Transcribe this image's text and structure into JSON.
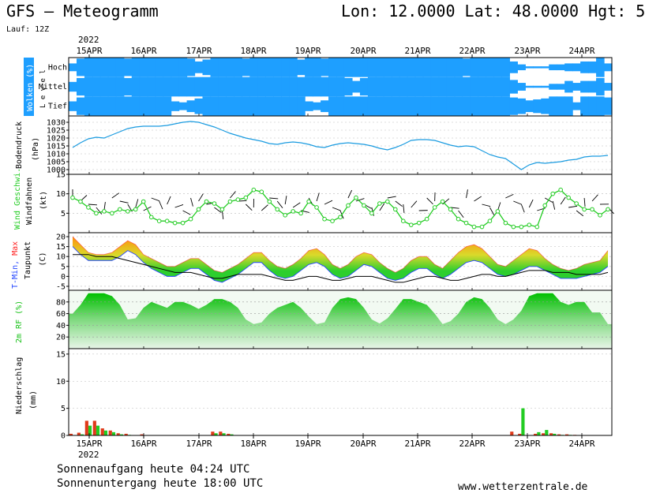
{
  "header": {
    "title": "GFS – Meteogramm",
    "location": "Lon: 12.0000  Lat: 48.0000  Hgt: 5",
    "run": "Lauf: 12Z"
  },
  "footer": {
    "sunrise": "Sonnenaufgang heute 04:24 UTC",
    "sunset": "Sonnenuntergang heute 18:00 UTC",
    "site": "www.wetterzentrale.de"
  },
  "chart_data": {
    "type": "meteogram",
    "year": "2022",
    "dates": [
      "15APR",
      "16APR",
      "17APR",
      "18APR",
      "19APR",
      "20APR",
      "21APR",
      "22APR",
      "23APR",
      "24APR"
    ],
    "colors": {
      "cloud": "#1e9fff",
      "pressure": "#1a9be0",
      "wind_speed": "#22cc22",
      "wind_barb": "#000000",
      "tmin": "#2244ff",
      "tmax": "#ff2222",
      "dewpoint": "#000000",
      "rh": "#16c016",
      "precip_rain": "#e03a1a",
      "precip_conv": "#22cc22"
    },
    "panels": [
      {
        "id": "clouds",
        "type": "heatmap",
        "ylabel": "Wolken (%)",
        "ylabel2": "L e v e l",
        "levels": [
          "Hoch",
          "Mittel",
          "Tief"
        ],
        "cover": {
          "Hoch": [
            40,
            90,
            100,
            100,
            100,
            100,
            100,
            90,
            100,
            100,
            100,
            100,
            100,
            100,
            100,
            90,
            60,
            80,
            100,
            100,
            100,
            100,
            90,
            100,
            100,
            100,
            100,
            100,
            100,
            80,
            100,
            100,
            90,
            100,
            100,
            100,
            100,
            100,
            100,
            100,
            100,
            100,
            100,
            100,
            100,
            100,
            100,
            100,
            100,
            100,
            90,
            100,
            100,
            100,
            100,
            100,
            60,
            30,
            10,
            10,
            10,
            30,
            30,
            40,
            40,
            60,
            60,
            100,
            40
          ],
          "Mittel": [
            50,
            90,
            100,
            100,
            100,
            100,
            100,
            90,
            100,
            100,
            100,
            100,
            100,
            100,
            100,
            100,
            100,
            100,
            100,
            100,
            100,
            100,
            100,
            100,
            100,
            100,
            100,
            100,
            100,
            100,
            100,
            100,
            100,
            100,
            100,
            90,
            60,
            90,
            100,
            100,
            100,
            100,
            100,
            100,
            100,
            100,
            100,
            100,
            100,
            100,
            100,
            100,
            100,
            100,
            100,
            100,
            70,
            40,
            10,
            10,
            10,
            30,
            30,
            60,
            40,
            60,
            60,
            90,
            40
          ],
          "Tief": [
            50,
            90,
            100,
            100,
            100,
            100,
            100,
            100,
            100,
            100,
            100,
            100,
            100,
            50,
            40,
            60,
            80,
            100,
            100,
            100,
            100,
            100,
            100,
            100,
            100,
            100,
            100,
            100,
            100,
            100,
            50,
            40,
            60,
            100,
            100,
            100,
            100,
            100,
            100,
            100,
            100,
            100,
            100,
            100,
            100,
            100,
            100,
            100,
            100,
            100,
            100,
            100,
            100,
            100,
            100,
            100,
            90,
            80,
            60,
            70,
            80,
            100,
            100,
            100,
            40,
            100,
            100,
            100,
            90
          ]
        }
      },
      {
        "id": "pressure",
        "type": "line",
        "ylabel": "Bodendruck",
        "ylabel2": "(hPa)",
        "ylim": [
          997,
          1034
        ],
        "yticks": [
          1000,
          1005,
          1010,
          1015,
          1020,
          1025,
          1030
        ],
        "values": [
          1014,
          1017,
          1019.5,
          1020.5,
          1020,
          1022,
          1024,
          1026,
          1027,
          1027.5,
          1027.5,
          1027.5,
          1028,
          1029,
          1030,
          1030.5,
          1030,
          1028.5,
          1027,
          1025,
          1023,
          1021.5,
          1020,
          1019,
          1018,
          1016.5,
          1016,
          1017,
          1017.5,
          1017,
          1016,
          1014.5,
          1014,
          1015.5,
          1016.5,
          1017,
          1016.5,
          1016,
          1015,
          1013.5,
          1012.5,
          1014,
          1016,
          1018.5,
          1019,
          1019,
          1018.5,
          1017,
          1015.5,
          1014.5,
          1015,
          1014.5,
          1012,
          1009.5,
          1008,
          1007,
          1003.5,
          1000,
          1003,
          1004.5,
          1004,
          1004.5,
          1005,
          1006,
          1006.5,
          1008,
          1008.5,
          1008.5,
          1009
        ]
      },
      {
        "id": "wind",
        "type": "line",
        "ylabel": "Wind Geschwi.",
        "ylabel2": "Windfahnen",
        "ylabel3": "(kt)",
        "ylim": [
          0,
          15
        ],
        "yticks": [
          5,
          10,
          15
        ],
        "values": [
          9,
          8,
          6.5,
          5,
          5.5,
          5,
          6,
          5.5,
          6,
          8,
          4,
          3,
          3,
          2.5,
          2.5,
          3.5,
          6,
          8,
          7.5,
          6,
          8,
          8.5,
          9,
          11,
          10.5,
          8,
          6,
          4.5,
          5.5,
          5,
          8,
          6.5,
          3.5,
          3,
          4,
          7,
          9,
          7,
          5,
          7.5,
          8,
          6,
          3,
          2,
          2.5,
          3.5,
          6.5,
          8,
          6,
          3.5,
          2.5,
          1.5,
          1.5,
          3,
          5.5,
          2.5,
          1.5,
          1.5,
          2,
          1.5,
          7,
          10,
          11,
          9,
          7.5,
          6,
          6,
          4.5,
          6
        ]
      },
      {
        "id": "temperature",
        "type": "area",
        "ylabel": "T-Min, Max",
        "ylabel2": "Taupunkt",
        "ylabel3": "(C)",
        "ylim": [
          -7,
          22
        ],
        "yticks": [
          -5,
          0,
          5,
          10,
          15,
          20
        ],
        "tmax": [
          20,
          16,
          12,
          11,
          11,
          12,
          15,
          18,
          16,
          11,
          9,
          7,
          5,
          5,
          7,
          9,
          9,
          6,
          3,
          2,
          4,
          6,
          9,
          12,
          12,
          8,
          5,
          4,
          6,
          9,
          13,
          14,
          11,
          6,
          4,
          6,
          10,
          12,
          11,
          7,
          4,
          2,
          4,
          8,
          10,
          10,
          6,
          4,
          8,
          12,
          15,
          16,
          14,
          10,
          6,
          5,
          8,
          11,
          14,
          13,
          9,
          6,
          4,
          3,
          4,
          6,
          7,
          8,
          13
        ],
        "tmin": [
          18,
          14,
          11,
          11,
          11,
          11,
          13,
          16,
          14,
          10,
          7,
          5,
          3,
          3,
          5,
          7,
          7,
          4,
          1,
          0,
          2,
          4,
          7,
          10,
          10,
          6,
          3,
          2,
          3,
          6,
          9,
          10,
          8,
          4,
          2,
          3,
          6,
          9,
          8,
          5,
          2,
          1,
          2,
          5,
          7,
          7,
          4,
          2,
          4,
          7,
          10,
          11,
          10,
          7,
          4,
          3,
          4,
          6,
          8,
          8,
          6,
          4,
          2,
          2,
          2,
          3,
          4,
          5,
          8
        ],
        "dewpoint": [
          11,
          11,
          11,
          10,
          10,
          10,
          9,
          8,
          7,
          6,
          5,
          4,
          3,
          2,
          2,
          2,
          1,
          0,
          -1,
          -1,
          0,
          1,
          1,
          1,
          1,
          0,
          -1,
          -2,
          -2,
          -1,
          0,
          0,
          -1,
          -2,
          -2,
          -1,
          0,
          0,
          0,
          -1,
          -2,
          -3,
          -3,
          -2,
          -1,
          0,
          0,
          -1,
          -2,
          -2,
          -1,
          0,
          1,
          1,
          0,
          0,
          1,
          2,
          3,
          3,
          3,
          2,
          2,
          2,
          1,
          1,
          1,
          1,
          2
        ]
      },
      {
        "id": "humidity",
        "type": "area",
        "ylabel": "2m RF (%)",
        "ylim": [
          0,
          100
        ],
        "yticks": [
          20,
          40,
          60,
          80
        ],
        "values": [
          60,
          75,
          95,
          95,
          95,
          90,
          75,
          50,
          52,
          70,
          80,
          75,
          70,
          80,
          80,
          75,
          68,
          75,
          85,
          85,
          80,
          70,
          50,
          42,
          45,
          60,
          70,
          75,
          80,
          70,
          55,
          42,
          45,
          70,
          85,
          88,
          85,
          70,
          50,
          43,
          52,
          68,
          85,
          85,
          80,
          75,
          60,
          42,
          47,
          60,
          80,
          88,
          85,
          70,
          50,
          42,
          50,
          65,
          90,
          95,
          95,
          95,
          80,
          75,
          80,
          80,
          62,
          62,
          42
        ]
      },
      {
        "id": "precip",
        "type": "bar",
        "ylabel": "Niederschlag",
        "ylabel2": "(mm)",
        "ylim": [
          0,
          16
        ],
        "yticks": [
          0,
          5,
          10,
          15
        ],
        "rain": [
          0.3,
          0.5,
          2.7,
          2.7,
          1.3,
          0.9,
          0.4,
          0.3,
          0,
          0.2,
          0,
          0,
          0,
          0,
          0,
          0,
          0,
          0,
          0.7,
          0.7,
          0.3,
          0,
          0,
          0,
          0,
          0,
          0,
          0,
          0,
          0,
          0,
          0,
          0,
          0,
          0,
          0,
          0,
          0,
          0,
          0,
          0,
          0,
          0,
          0,
          0,
          0,
          0,
          0,
          0,
          0,
          0,
          0,
          0,
          0,
          0,
          0,
          0.7,
          0.3,
          0,
          0.3,
          0.4,
          0.4,
          0.2,
          0.2,
          0.1,
          0,
          0,
          0,
          0
        ],
        "convective": [
          0,
          0.2,
          1.8,
          1.8,
          0.9,
          0.6,
          0.2,
          0.1,
          0,
          0,
          0,
          0,
          0,
          0,
          0,
          0,
          0,
          0,
          0.4,
          0.4,
          0.2,
          0,
          0,
          0,
          0,
          0,
          0,
          0,
          0,
          0,
          0,
          0,
          0,
          0,
          0,
          0,
          0,
          0,
          0,
          0,
          0,
          0,
          0,
          0,
          0,
          0,
          0,
          0,
          0,
          0,
          0,
          0,
          0,
          0,
          0,
          0,
          0,
          5.0,
          0,
          0.6,
          1.0,
          0.3,
          0.1,
          0.1,
          0,
          0,
          0,
          0,
          0
        ]
      }
    ]
  }
}
